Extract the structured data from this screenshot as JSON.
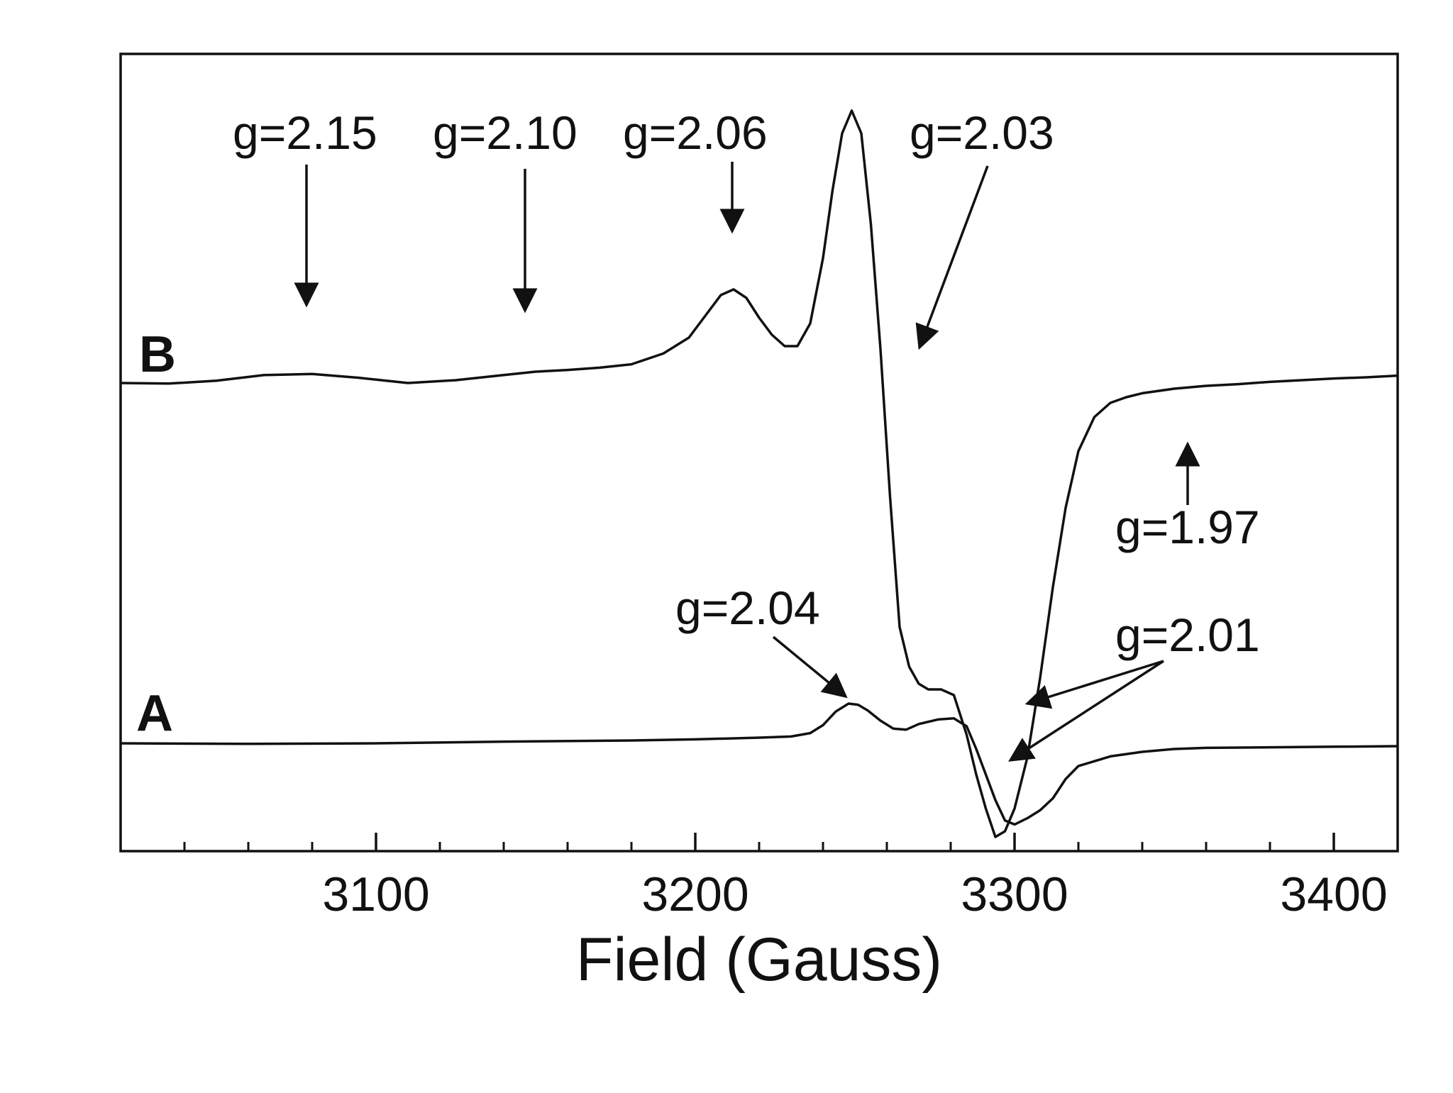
{
  "chart_data": {
    "type": "line",
    "title": "",
    "xlabel": "Field (Gauss)",
    "ylabel": "",
    "xlim": [
      3020,
      3420
    ],
    "xticks_major": [
      3100,
      3200,
      3300,
      3400
    ],
    "xticks_major_labels": [
      "3100",
      "3200",
      "3300",
      "3400"
    ],
    "xticks_minor": [
      3040,
      3060,
      3080,
      3120,
      3140,
      3160,
      3180,
      3220,
      3240,
      3260,
      3280,
      3320,
      3340,
      3360,
      3380
    ],
    "grid": false,
    "legend": "none",
    "colors": {
      "line": "#111111",
      "frame": "#111111",
      "background": "#ffffff"
    },
    "series": [
      {
        "name": "B",
        "x": [
          3020,
          3035,
          3050,
          3065,
          3080,
          3095,
          3110,
          3125,
          3140,
          3150,
          3160,
          3170,
          3180,
          3190,
          3198,
          3204,
          3208,
          3212,
          3216,
          3220,
          3224,
          3228,
          3232,
          3236,
          3240,
          3243,
          3246,
          3249,
          3252,
          3255,
          3258,
          3261,
          3264,
          3267,
          3270,
          3273,
          3277,
          3281,
          3285,
          3288,
          3291,
          3294,
          3297,
          3300,
          3304,
          3308,
          3312,
          3316,
          3320,
          3325,
          3330,
          3335,
          3340,
          3350,
          3360,
          3370,
          3380,
          3390,
          3400,
          3410,
          3420
        ],
        "y": [
          0.0,
          -0.1,
          0.4,
          1.4,
          1.6,
          0.9,
          0.0,
          0.5,
          1.4,
          2.0,
          2.3,
          2.7,
          3.3,
          5.2,
          8.0,
          12.5,
          15.5,
          16.5,
          15.0,
          11.5,
          8.5,
          6.5,
          6.5,
          10.5,
          22.0,
          34.0,
          44.0,
          48.0,
          44.0,
          28.0,
          6.0,
          -20.0,
          -43.0,
          -50.0,
          -53.0,
          -54.0,
          -54.0,
          -55.0,
          -62.0,
          -69.0,
          -75.0,
          -80.0,
          -79.0,
          -75.0,
          -66.0,
          -52.0,
          -36.0,
          -22.0,
          -12.0,
          -6.0,
          -3.5,
          -2.5,
          -1.8,
          -1.0,
          -0.5,
          -0.2,
          0.2,
          0.5,
          0.8,
          1.0,
          1.3
        ]
      },
      {
        "name": "A",
        "x": [
          3020,
          3060,
          3100,
          3140,
          3180,
          3200,
          3220,
          3230,
          3236,
          3240,
          3244,
          3248,
          3251,
          3254,
          3258,
          3262,
          3266,
          3270,
          3276,
          3281,
          3285,
          3288,
          3291,
          3294,
          3297,
          3300,
          3304,
          3308,
          3312,
          3316,
          3320,
          3330,
          3340,
          3350,
          3360,
          3380,
          3400,
          3420
        ],
        "y": [
          0.0,
          -0.1,
          0.0,
          0.3,
          0.5,
          0.7,
          1.0,
          1.2,
          1.8,
          3.2,
          5.6,
          7.0,
          6.8,
          5.8,
          4.0,
          2.6,
          2.4,
          3.4,
          4.2,
          4.4,
          3.0,
          -1.0,
          -5.5,
          -10.0,
          -13.6,
          -14.3,
          -13.2,
          -11.8,
          -9.7,
          -6.3,
          -4.0,
          -2.3,
          -1.5,
          -1.0,
          -0.8,
          -0.7,
          -0.6,
          -0.5
        ]
      }
    ],
    "trace_labels": [
      "B",
      "A"
    ],
    "annotations": [
      {
        "text": "g=2.15",
        "x": 3080,
        "series": "B",
        "pointing": "down"
      },
      {
        "text": "g=2.10",
        "x": 3148,
        "series": "B",
        "pointing": "down"
      },
      {
        "text": "g=2.06",
        "x": 3212,
        "series": "B",
        "pointing": "down"
      },
      {
        "text": "g=2.03",
        "x": 3270,
        "series": "B",
        "pointing": "down-left"
      },
      {
        "text": "g=1.97",
        "x": 3353,
        "series": "B",
        "pointing": "up"
      },
      {
        "text": "g=2.04",
        "x": 3249,
        "series": "A",
        "pointing": "down-right"
      },
      {
        "text": "g=2.01",
        "x": 3295,
        "series": "A and B",
        "pointing": "left"
      }
    ]
  }
}
